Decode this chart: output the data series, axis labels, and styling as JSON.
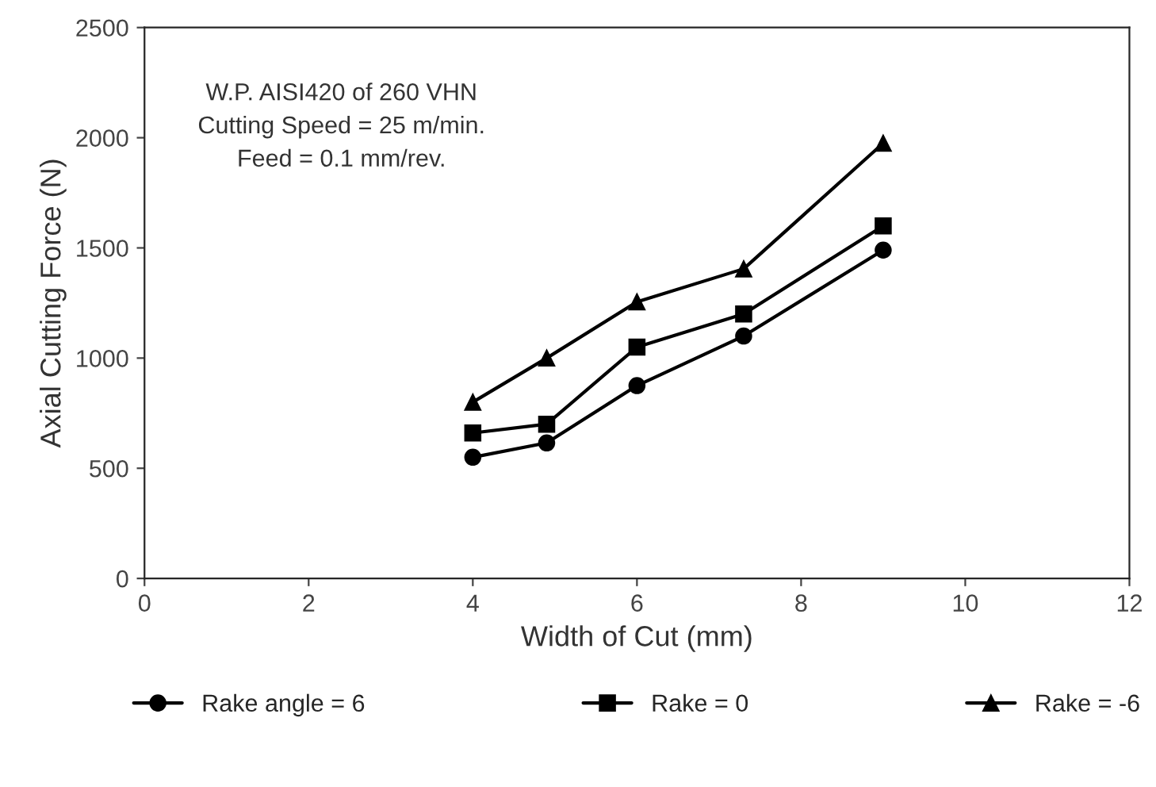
{
  "chart_data": {
    "type": "line",
    "xlabel": "Width of Cut (mm)",
    "ylabel": "Axial Cutting Force (N)",
    "annotations": [
      "W.P. AISI420 of 260 VHN\nCutting Speed = 25 m/min.\nFeed = 0.1 mm/rev."
    ],
    "x": [
      4,
      4.9,
      6,
      7.3,
      9
    ],
    "series": [
      {
        "name": "Rake angle = 6",
        "color": "#000000",
        "marker": "circle",
        "values": [
          550,
          615,
          875,
          1100,
          1490
        ]
      },
      {
        "name": "Rake = 0",
        "color": "#000000",
        "marker": "square",
        "values": [
          660,
          700,
          1050,
          1200,
          1600
        ]
      },
      {
        "name": "Rake = -6",
        "color": "#000000",
        "marker": "triangle",
        "values": [
          800,
          1000,
          1255,
          1405,
          1975
        ]
      }
    ],
    "xlim": [
      0,
      12
    ],
    "xticks": [
      0,
      2,
      4,
      6,
      8,
      10,
      12
    ],
    "ylim": [
      0,
      2500
    ],
    "yticks": [
      0,
      500,
      1000,
      1500,
      2000,
      2500
    ],
    "grid": false,
    "legend": "bottom"
  }
}
